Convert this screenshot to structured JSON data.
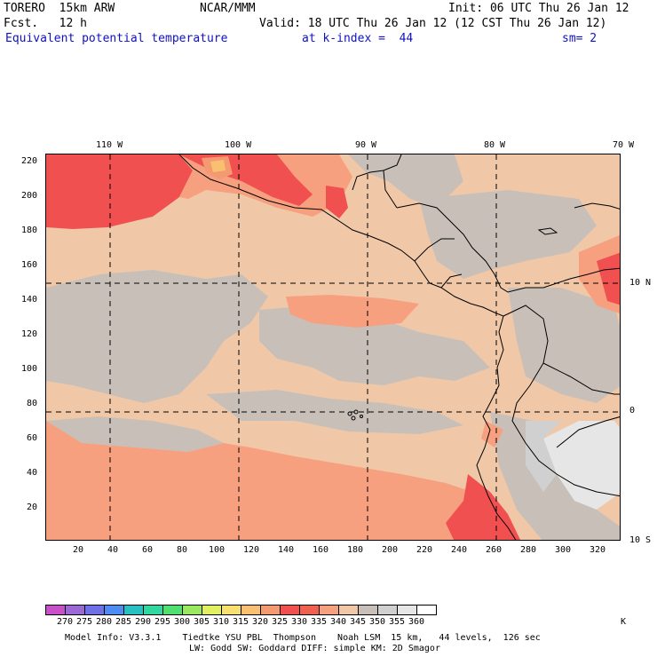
{
  "header": {
    "model": "TORERO  15km ARW",
    "center": "NCAR/MMM",
    "init": "Init: 06 UTC Thu 26 Jan 12",
    "fcst": "Fcst.   12 h",
    "valid": "Valid: 18 UTC Thu 26 Jan 12 (12 CST Thu 26 Jan 12)",
    "field": "Equivalent potential temperature",
    "level": "at k-index =  44",
    "smooth": "sm= 2"
  },
  "top_axis": [
    "110 W",
    "100 W",
    "90 W",
    "80 W",
    "70 W"
  ],
  "right_axis": [
    "10 N",
    "0",
    "10 S"
  ],
  "left_axis": [
    "220",
    "200",
    "180",
    "160",
    "140",
    "120",
    "100",
    "80",
    "60",
    "40",
    "20"
  ],
  "bottom_axis": [
    "20",
    "40",
    "60",
    "80",
    "100",
    "120",
    "140",
    "160",
    "180",
    "200",
    "220",
    "240",
    "260",
    "280",
    "300",
    "320"
  ],
  "colorbar": {
    "labels": [
      "270",
      "275",
      "280",
      "285",
      "290",
      "295",
      "300",
      "305",
      "310",
      "315",
      "320",
      "325",
      "330",
      "335",
      "340",
      "345",
      "350",
      "355",
      "360"
    ],
    "unit": "K",
    "colors": [
      "#c850c8",
      "#9b68d6",
      "#7070e6",
      "#4f8cf2",
      "#28c0c0",
      "#30d8a0",
      "#50e070",
      "#9ae860",
      "#e0f060",
      "#f8e070",
      "#f8c070",
      "#f49a70",
      "#f05050",
      "#f06050",
      "#f7a080",
      "#f0c8a8",
      "#c8c0b8",
      "#d0d0d0",
      "#e6e6e6",
      "#ffffff"
    ]
  },
  "footer": {
    "line1": "Model Info: V3.3.1    Tiedtke YSU PBL  Thompson    Noah LSM  15 km,   44 levels,  126 sec",
    "line2": "LW: Godd SW: Goddard DIFF: simple KM: 2D Smagor"
  }
}
